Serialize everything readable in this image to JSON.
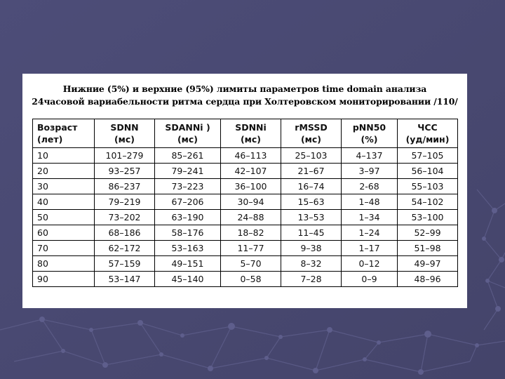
{
  "title_lines": [
    "Нижние (5%) и верхние (95%) лимиты параметров time domain анализа",
    "24часовой вариабельности ритма сердца при Холтеровском мониторировании /110/"
  ],
  "table": {
    "columns": [
      {
        "name": "Возраст",
        "unit": "(лет)"
      },
      {
        "name": "SDNN",
        "unit": "(мс)"
      },
      {
        "name": "SDANNi )",
        "unit": "(мс)"
      },
      {
        "name": "SDNNi",
        "unit": "(мс)"
      },
      {
        "name": "rMSSD",
        "unit": "(мс)"
      },
      {
        "name": "pNN50",
        "unit": "(%)"
      },
      {
        "name": "ЧСС",
        "unit": "(уд/мин)"
      }
    ],
    "rows": [
      [
        "10",
        "101–279",
        "85–261",
        "46–113",
        "25–103",
        "4–137",
        "57–105"
      ],
      [
        "20",
        "93–257",
        "79–241",
        "42–107",
        "21–67",
        "3–97",
        "56–104"
      ],
      [
        "30",
        "86–237",
        "73–223",
        "36–100",
        "16–74",
        "2-68",
        "55–103"
      ],
      [
        "40",
        "79–219",
        "67–206",
        "30–94",
        "15–63",
        "1–48",
        "54–102"
      ],
      [
        "50",
        "73–202",
        "63–190",
        "24–88",
        "13–53",
        "1–34",
        "53–100"
      ],
      [
        "60",
        "68–186",
        "58–176",
        "18–82",
        "11–45",
        "1–24",
        "52–99"
      ],
      [
        "70",
        "62–172",
        "53–163",
        "11–77",
        "9–38",
        "1–17",
        "51–98"
      ],
      [
        "80",
        "57–159",
        "49–151",
        "5–70",
        "8–32",
        "0–12",
        "49–97"
      ],
      [
        "90",
        "53–147",
        "45–140",
        "0–58",
        "7–28",
        "0–9",
        "48–96"
      ]
    ]
  },
  "colors": {
    "background": "#4a4a72",
    "sheet": "#ffffff"
  }
}
